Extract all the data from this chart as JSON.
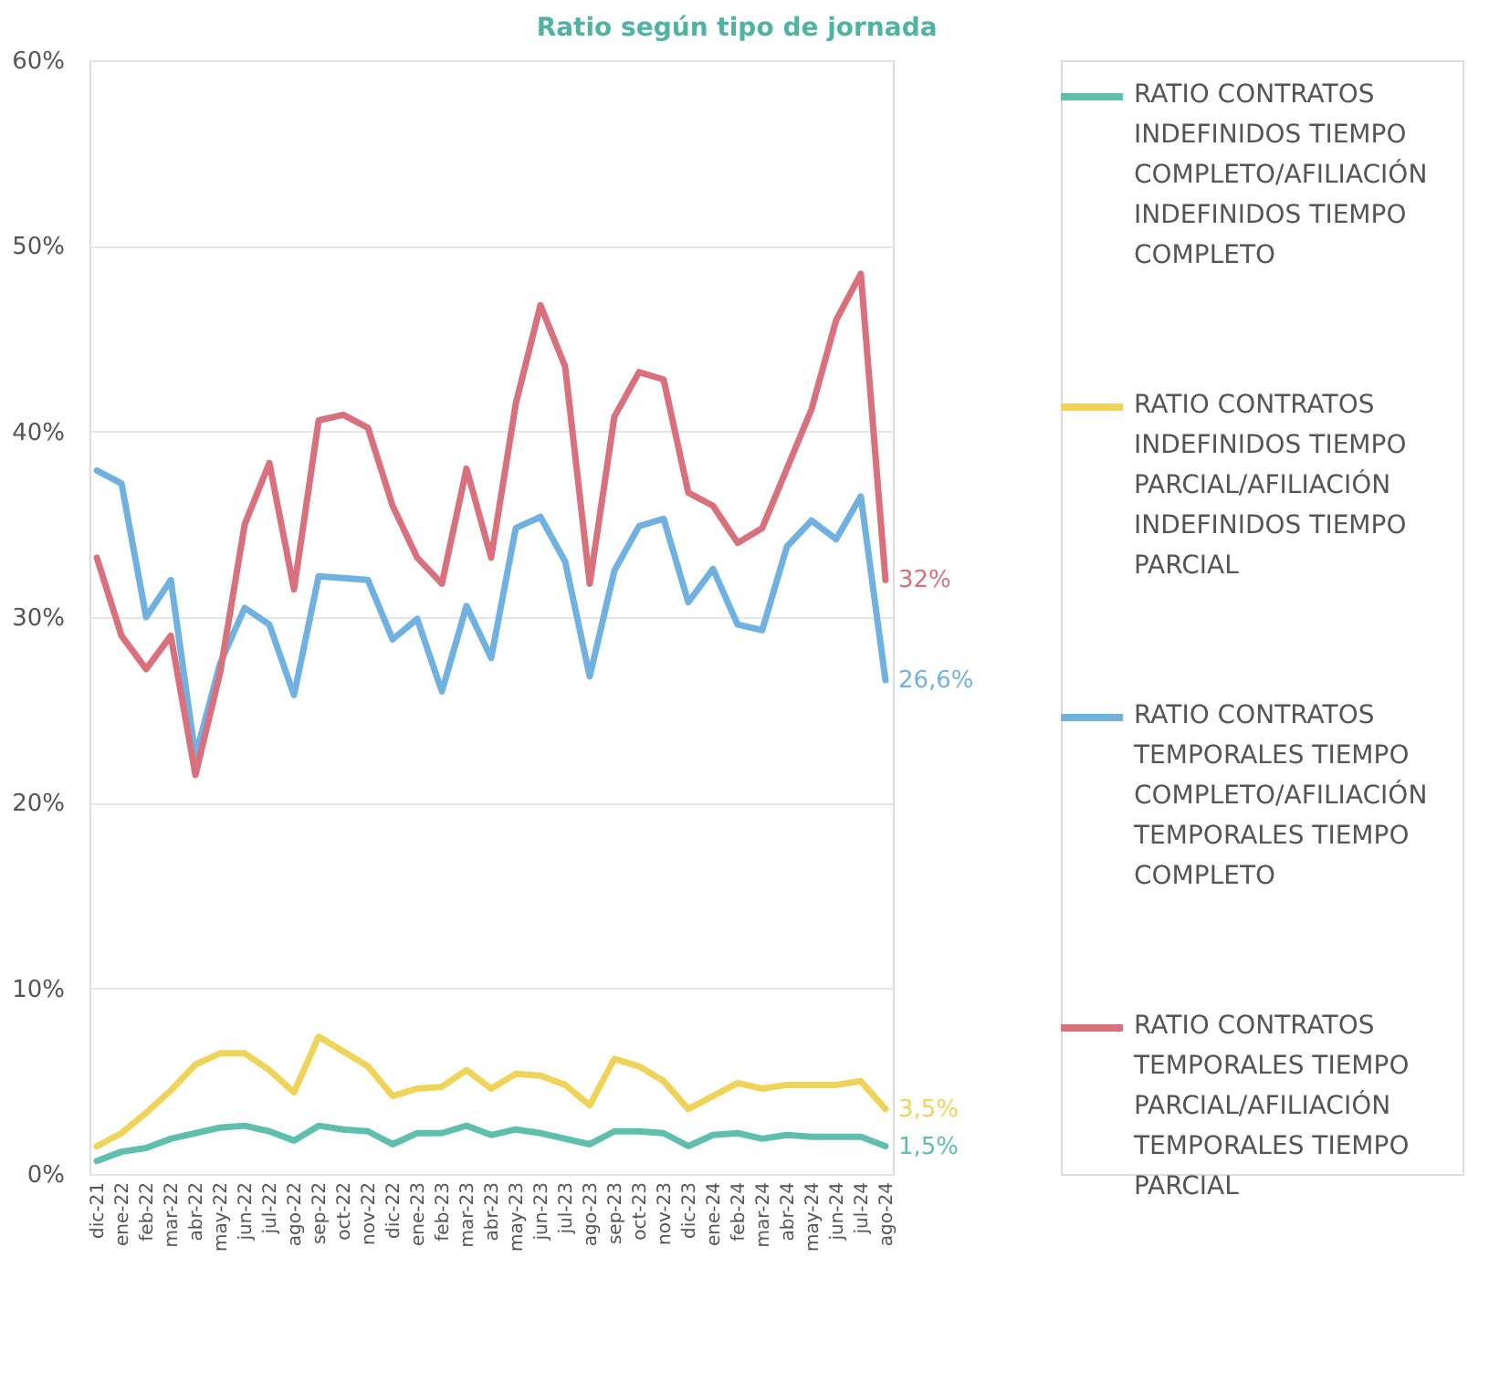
{
  "chart_data": {
    "type": "line",
    "title": "Ratio según tipo de jornada",
    "categories": [
      "dic-21",
      "ene-22",
      "feb-22",
      "mar-22",
      "abr-22",
      "may-22",
      "jun-22",
      "jul-22",
      "ago-22",
      "sep-22",
      "oct-22",
      "nov-22",
      "dic-22",
      "ene-23",
      "feb-23",
      "mar-23",
      "abr-23",
      "may-23",
      "jun-23",
      "jul-23",
      "ago-23",
      "sep-23",
      "oct-23",
      "nov-23",
      "dic-23",
      "ene-24",
      "feb-24",
      "mar-24",
      "abr-24",
      "may-24",
      "jun-24",
      "jul-24",
      "ago-24"
    ],
    "series": [
      {
        "name": "RATIO CONTRATOS INDEFINIDOS TIEMPO COMPLETO/AFILIACIÓN INDEFINIDOS TIEMPO COMPLETO",
        "color": "#5fbfae",
        "values": [
          0.7,
          1.2,
          1.4,
          1.9,
          2.2,
          2.5,
          2.6,
          2.3,
          1.8,
          2.6,
          2.4,
          2.3,
          1.6,
          2.2,
          2.2,
          2.6,
          2.1,
          2.4,
          2.2,
          1.9,
          1.6,
          2.3,
          2.3,
          2.2,
          1.5,
          2.1,
          2.2,
          1.9,
          2.1,
          2.0,
          2.0,
          2.0,
          1.5
        ]
      },
      {
        "name": "RATIO CONTRATOS INDEFINIDOS TIEMPO PARCIAL/AFILIACIÓN INDEFINIDOS TIEMPO PARCIAL",
        "color": "#f0d45a",
        "values": [
          1.5,
          2.2,
          3.3,
          4.5,
          5.9,
          6.5,
          6.5,
          5.6,
          4.4,
          7.4,
          6.6,
          5.8,
          4.2,
          4.6,
          4.7,
          5.6,
          4.6,
          5.4,
          5.3,
          4.8,
          3.7,
          6.2,
          5.8,
          5.0,
          3.5,
          4.2,
          4.9,
          4.6,
          4.8,
          4.8,
          4.8,
          5.0,
          3.5
        ]
      },
      {
        "name": "RATIO CONTRATOS TEMPORALES TIEMPO COMPLETO/AFILIACIÓN TEMPORALES TIEMPO COMPLETO",
        "color": "#6fb2e2",
        "values": [
          37.9,
          37.2,
          30.0,
          32.0,
          22.5,
          27.5,
          30.5,
          29.6,
          25.8,
          32.2,
          32.1,
          32.0,
          28.8,
          29.9,
          26.0,
          30.6,
          27.8,
          34.8,
          35.4,
          33.0,
          26.8,
          32.5,
          34.9,
          35.3,
          30.8,
          32.6,
          29.6,
          29.3,
          33.8,
          35.2,
          34.2,
          36.5,
          26.6
        ]
      },
      {
        "name": "RATIO CONTRATOS TEMPORALES TIEMPO PARCIAL/AFILIACIÓN TEMPORALES TIEMPO PARCIAL",
        "color": "#d9707c",
        "values": [
          33.2,
          29.0,
          27.2,
          29.0,
          21.5,
          27.0,
          35.0,
          38.3,
          31.5,
          40.6,
          40.9,
          40.2,
          36.0,
          33.2,
          31.8,
          38.0,
          33.2,
          41.5,
          46.8,
          43.5,
          31.8,
          40.8,
          43.2,
          42.8,
          36.7,
          36.0,
          34.0,
          34.8,
          38.0,
          41.2,
          46.0,
          48.5,
          32.0
        ]
      }
    ],
    "ylim": [
      0,
      60
    ],
    "yticks": [
      {
        "value": 0,
        "label": "0%"
      },
      {
        "value": 10,
        "label": "10%"
      },
      {
        "value": 20,
        "label": "20%"
      },
      {
        "value": 30,
        "label": "30%"
      },
      {
        "value": 40,
        "label": "40%"
      },
      {
        "value": 50,
        "label": "50%"
      },
      {
        "value": 60,
        "label": "60%"
      }
    ],
    "grid": "y",
    "legend": "right",
    "marker": "none",
    "line_style": "solid",
    "annotations": [
      {
        "text": "32%",
        "x": "ago-24",
        "y": 32.0
      },
      {
        "text": "26,6%",
        "x": "ago-24",
        "y": 26.6
      },
      {
        "text": "3,5%",
        "x": "ago-24",
        "y": 3.5
      },
      {
        "text": "1,5%",
        "x": "ago-24",
        "y": 1.5
      }
    ]
  }
}
